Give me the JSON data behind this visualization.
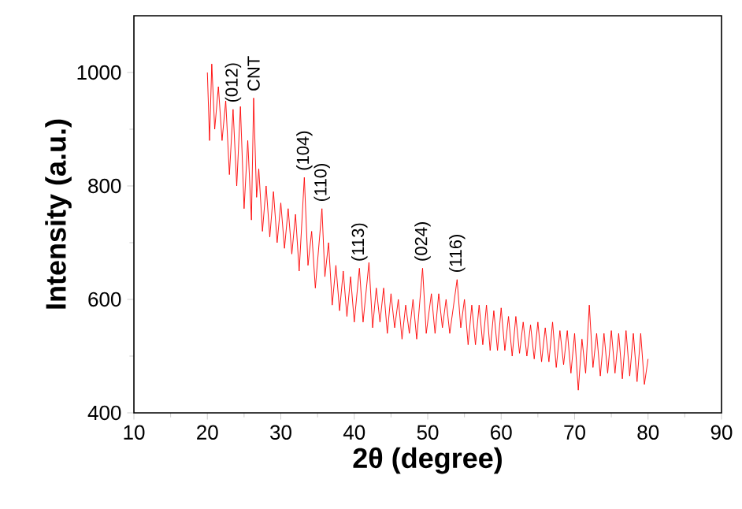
{
  "chart_data": {
    "type": "line",
    "xlabel": "2θ (degree)",
    "ylabel": "Intensity (a.u.)",
    "xlim": [
      10,
      90
    ],
    "xticks": [
      10,
      20,
      30,
      40,
      50,
      60,
      70,
      80,
      90
    ],
    "ylim": [
      400,
      1100
    ],
    "yticks": [
      400,
      600,
      800,
      1000
    ],
    "grid": false,
    "marker": "none",
    "line_style": "solid",
    "annotations": [
      {
        "text": "(012)",
        "x": 23.5,
        "y": 935
      },
      {
        "text": "CNT",
        "x": 26.3,
        "y": 955
      },
      {
        "text": "(104)",
        "x": 33.2,
        "y": 815
      },
      {
        "text": "(110)",
        "x": 35.6,
        "y": 760
      },
      {
        "text": "(113)",
        "x": 40.7,
        "y": 655
      },
      {
        "text": "(024)",
        "x": 49.3,
        "y": 655
      },
      {
        "text": "(116)",
        "x": 54.0,
        "y": 635
      }
    ],
    "series": [
      {
        "color": "#ff0000",
        "x": [
          20.0,
          20.3,
          20.6,
          21.0,
          21.5,
          22.0,
          22.5,
          23.0,
          23.5,
          24.0,
          24.5,
          25.0,
          25.5,
          26.0,
          26.3,
          26.7,
          27.0,
          27.5,
          28.0,
          28.5,
          29.0,
          29.5,
          30.0,
          30.5,
          31.0,
          31.5,
          32.0,
          32.5,
          33.2,
          33.7,
          34.2,
          34.7,
          35.6,
          36.0,
          36.5,
          37.0,
          37.5,
          38.0,
          38.5,
          39.0,
          39.5,
          40.0,
          40.7,
          41.2,
          42.0,
          42.5,
          43.0,
          43.5,
          44.0,
          44.5,
          45.0,
          45.5,
          46.0,
          46.5,
          47.0,
          47.5,
          48.0,
          48.5,
          49.3,
          49.8,
          50.5,
          51.0,
          51.5,
          52.0,
          52.5,
          53.0,
          54.0,
          54.5,
          55.0,
          55.5,
          56.0,
          56.5,
          57.0,
          57.5,
          58.0,
          58.5,
          59.0,
          59.5,
          60.0,
          60.5,
          61.0,
          61.5,
          62.0,
          62.5,
          63.0,
          63.5,
          64.0,
          64.5,
          65.0,
          65.5,
          66.0,
          66.5,
          67.0,
          67.5,
          68.0,
          68.5,
          69.0,
          69.5,
          70.0,
          70.5,
          71.0,
          71.5,
          72.0,
          72.5,
          73.0,
          73.5,
          74.0,
          74.5,
          75.0,
          75.5,
          76.0,
          76.5,
          77.0,
          77.5,
          78.0,
          78.5,
          79.0,
          79.5,
          80.0
        ],
        "values": [
          1000,
          880,
          1015,
          900,
          975,
          880,
          950,
          820,
          935,
          800,
          940,
          760,
          880,
          740,
          955,
          780,
          830,
          720,
          800,
          710,
          790,
          700,
          770,
          690,
          760,
          680,
          750,
          650,
          815,
          660,
          720,
          620,
          760,
          640,
          700,
          590,
          660,
          580,
          650,
          570,
          640,
          560,
          655,
          560,
          665,
          550,
          620,
          560,
          620,
          540,
          610,
          550,
          600,
          530,
          590,
          540,
          600,
          530,
          655,
          540,
          610,
          540,
          610,
          550,
          600,
          540,
          635,
          550,
          600,
          520,
          590,
          520,
          590,
          520,
          590,
          510,
          580,
          510,
          585,
          510,
          570,
          500,
          570,
          505,
          560,
          500,
          555,
          495,
          560,
          490,
          550,
          490,
          560,
          480,
          545,
          485,
          545,
          470,
          540,
          440,
          530,
          470,
          590,
          480,
          540,
          465,
          540,
          470,
          545,
          470,
          540,
          460,
          545,
          465,
          540,
          455,
          540,
          450,
          495
        ]
      }
    ]
  }
}
